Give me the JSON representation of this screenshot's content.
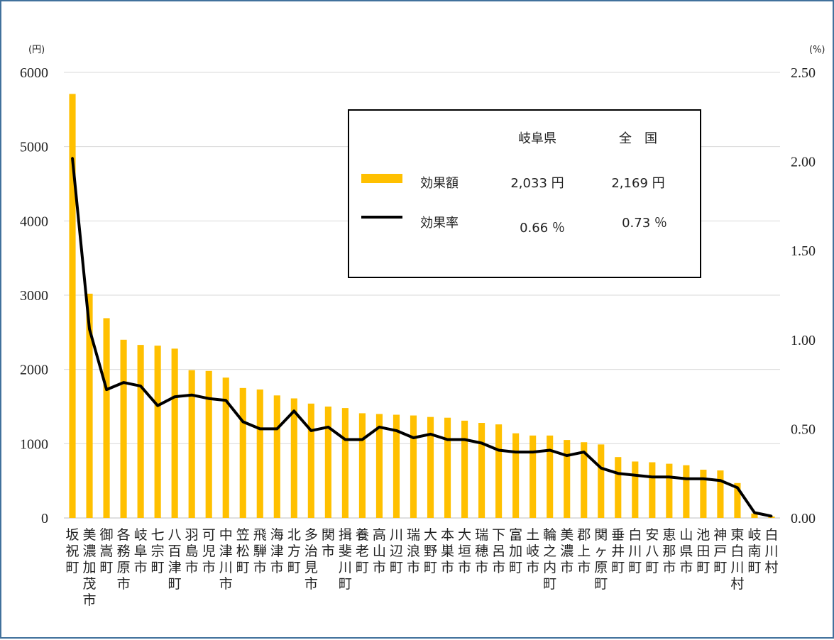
{
  "chart_data": {
    "type": "bar",
    "left_unit": "(円)",
    "right_unit": "(%)",
    "left_ticks": [
      "0",
      "1000",
      "2000",
      "3000",
      "4000",
      "5000",
      "6000"
    ],
    "right_ticks": [
      "0.00",
      "0.50",
      "1.00",
      "1.50",
      "2.00",
      "2.50"
    ],
    "ylim_left": [
      0,
      6000
    ],
    "ylim_right": [
      0,
      2.5
    ],
    "grid": true,
    "categories": [
      "坂祝町",
      "美濃加茂市",
      "御嵩町",
      "各務原市",
      "岐阜市",
      "七宗町",
      "八百津町",
      "羽島市",
      "可児市",
      "中津川市",
      "笠松町",
      "飛騨市",
      "海津市",
      "北方町",
      "多治見市",
      "関市",
      "揖斐川町",
      "養老町",
      "高山市",
      "川辺町",
      "瑞浪市",
      "大野町",
      "本巣市",
      "大垣市",
      "瑞穂市",
      "下呂市",
      "富加町",
      "土岐市",
      "輪之内町",
      "美濃市",
      "郡上市",
      "関ヶ原町",
      "垂井町",
      "白川町",
      "安八町",
      "恵那市",
      "山県市",
      "池田町",
      "神戸町",
      "東白川村",
      "岐南町",
      "白川村"
    ],
    "series": [
      {
        "name": "効果額",
        "axis": "left",
        "color": "#ffc000",
        "values": [
          5710,
          3020,
          2690,
          2400,
          2330,
          2320,
          2280,
          1990,
          1980,
          1890,
          1750,
          1730,
          1650,
          1610,
          1540,
          1500,
          1480,
          1410,
          1400,
          1390,
          1380,
          1360,
          1350,
          1310,
          1280,
          1260,
          1140,
          1110,
          1110,
          1050,
          1020,
          990,
          820,
          760,
          750,
          730,
          710,
          650,
          640,
          470,
          60,
          20
        ]
      },
      {
        "name": "効果率",
        "axis": "right",
        "color": "#000000",
        "values": [
          2.02,
          1.06,
          0.72,
          0.76,
          0.74,
          0.63,
          0.68,
          0.69,
          0.67,
          0.66,
          0.54,
          0.5,
          0.5,
          0.6,
          0.49,
          0.51,
          0.44,
          0.44,
          0.51,
          0.49,
          0.45,
          0.47,
          0.44,
          0.44,
          0.42,
          0.38,
          0.37,
          0.37,
          0.38,
          0.35,
          0.37,
          0.28,
          0.25,
          0.24,
          0.23,
          0.23,
          0.22,
          0.22,
          0.21,
          0.17,
          0.03,
          0.01
        ]
      }
    ],
    "legend": {
      "position": "top-right",
      "col_pref": "岐阜県",
      "col_nation": "全　国",
      "rows": [
        {
          "label": "効果額",
          "pref": "2,033 円",
          "nation": "2,169 円"
        },
        {
          "label": "効果率",
          "pref": "0.66 ％",
          "nation": "0.73 ％"
        }
      ]
    }
  }
}
